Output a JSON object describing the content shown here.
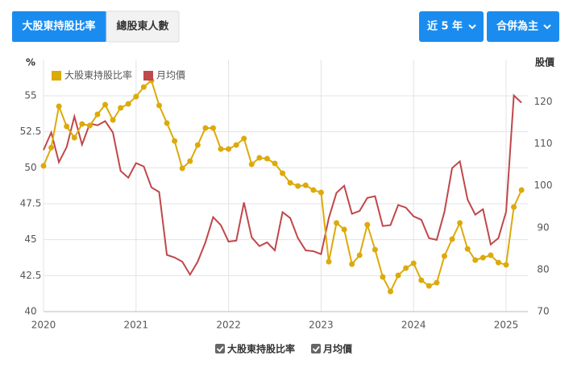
{
  "ui": {
    "tabs": [
      "大股東持股比率",
      "總股東人數"
    ],
    "dropdowns": [
      "近 5 年",
      "合併為主"
    ]
  },
  "chart_data": {
    "type": "line",
    "y_label": "%",
    "y2_label": "股價",
    "categories": [
      "2020",
      null,
      null,
      null,
      null,
      null,
      null,
      null,
      null,
      null,
      null,
      null,
      "2021",
      null,
      null,
      null,
      null,
      null,
      null,
      null,
      null,
      null,
      null,
      null,
      "2022",
      null,
      null,
      null,
      null,
      null,
      null,
      null,
      null,
      null,
      null,
      null,
      "2023",
      null,
      null,
      null,
      null,
      null,
      null,
      null,
      null,
      null,
      null,
      null,
      "2024",
      null,
      null,
      null,
      null,
      null,
      null,
      null,
      null,
      null,
      null,
      null,
      "2025",
      null,
      null
    ],
    "series": [
      {
        "name": "大股東持股比率",
        "color": "#dcaa0a",
        "axis": "y",
        "marker": true,
        "values": [
          50.13,
          51.4,
          54.27,
          52.87,
          52.09,
          53.04,
          52.93,
          53.71,
          54.38,
          53.32,
          54.16,
          54.44,
          54.94,
          55.61,
          56.06,
          54.33,
          53.1,
          51.86,
          49.96,
          50.46,
          51.58,
          52.76,
          52.76,
          51.3,
          51.3,
          51.58,
          52.03,
          50.24,
          50.69,
          50.63,
          50.3,
          49.62,
          48.95,
          48.73,
          48.78,
          48.45,
          48.28,
          43.47,
          46.16,
          45.71,
          43.3,
          43.92,
          46.04,
          44.31,
          42.41,
          41.4,
          42.52,
          43.02,
          43.36,
          42.18,
          41.79,
          42.01,
          43.86,
          45.04,
          46.16,
          44.36,
          43.58,
          43.75,
          43.92,
          43.41,
          43.25,
          47.27,
          48.45
        ]
      },
      {
        "name": "月均價",
        "color": "#c0474a",
        "axis": "y2",
        "marker": false,
        "values": [
          108.5,
          112.7,
          105.6,
          109.2,
          116.5,
          109.8,
          114.8,
          114.4,
          115.4,
          112.7,
          103.5,
          101.9,
          105.4,
          104.6,
          99.6,
          98.5,
          83.5,
          82.9,
          81.9,
          78.8,
          81.9,
          86.5,
          92.5,
          90.6,
          86.7,
          86.9,
          96.0,
          87.7,
          85.6,
          86.5,
          84.6,
          93.7,
          92.3,
          87.5,
          84.6,
          84.4,
          83.7,
          92.3,
          98.3,
          100.0,
          93.3,
          94.0,
          97.1,
          97.5,
          90.4,
          90.6,
          95.4,
          94.8,
          92.7,
          91.9,
          87.5,
          87.1,
          93.8,
          104.2,
          105.8,
          96.7,
          93.1,
          94.4,
          86.0,
          87.5,
          93.8,
          121.5,
          119.8
        ]
      }
    ],
    "ylim": [
      40,
      57.5
    ],
    "yticks": [
      40,
      42.5,
      45,
      47.5,
      50,
      52.5,
      55
    ],
    "y2lim": [
      70,
      130
    ],
    "y2ticks": [
      70,
      80,
      90,
      100,
      110,
      120
    ],
    "grid": true
  }
}
